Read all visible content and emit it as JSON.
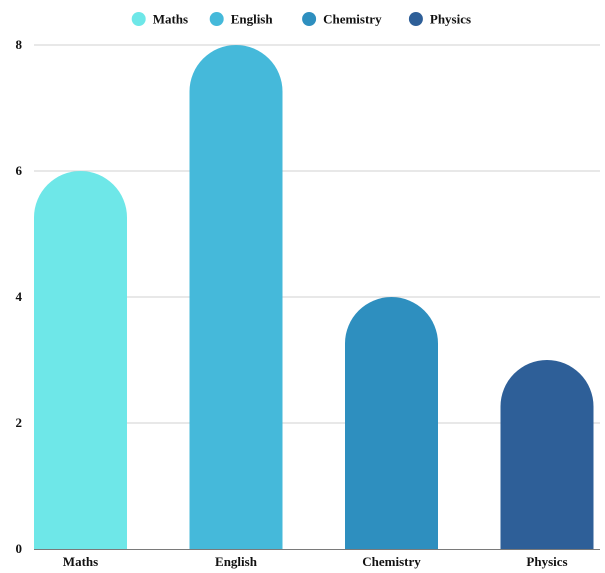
{
  "chart_data": {
    "type": "bar",
    "categories": [
      "Maths",
      "English",
      "Chemistry",
      "Physics"
    ],
    "values": [
      6,
      8,
      4,
      3
    ],
    "colors": [
      "#6ee7e8",
      "#45b9da",
      "#2e8fbf",
      "#2e5f98"
    ],
    "ylim": [
      0,
      8
    ],
    "yticks": [
      0,
      2,
      4,
      6,
      8
    ],
    "grid": true,
    "legend": {
      "position": "top-center",
      "items": [
        {
          "label": "Maths",
          "color": "#6ee7e8"
        },
        {
          "label": "English",
          "color": "#45b9da"
        },
        {
          "label": "Chemistry",
          "color": "#2e8fbf"
        },
        {
          "label": "Physics",
          "color": "#2e5f98"
        }
      ]
    },
    "title": "",
    "xlabel": "",
    "ylabel": ""
  }
}
